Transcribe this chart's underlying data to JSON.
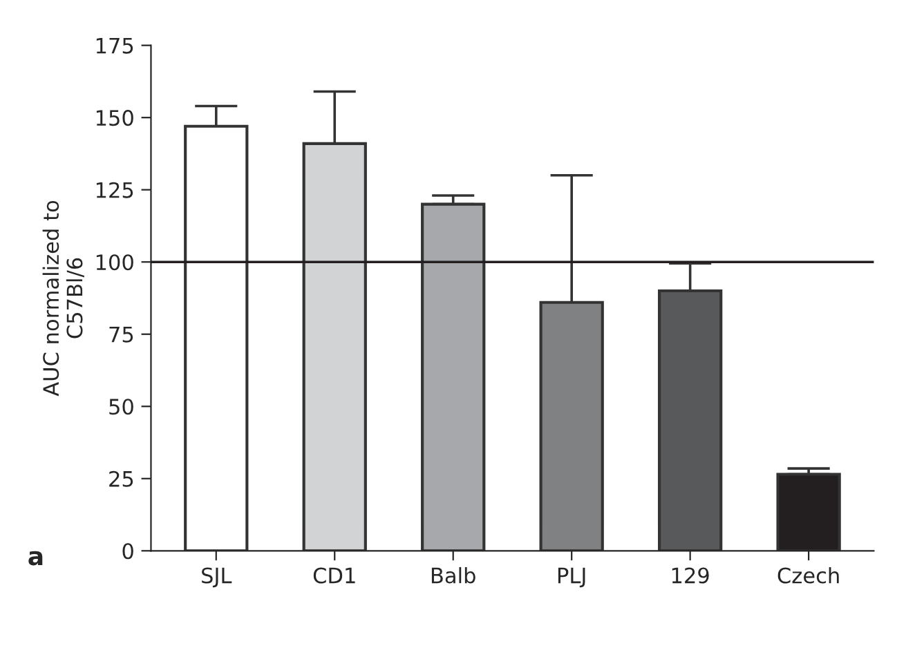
{
  "chart_data": {
    "type": "bar",
    "ylabel": "AUC normalized to\nC57Bl/6",
    "categories": [
      "SJL",
      "CD1",
      "Balb",
      "PLJ",
      "129",
      "Czech"
    ],
    "values": [
      147,
      141,
      120,
      86,
      90,
      26.5
    ],
    "errors": [
      [
        147,
        154
      ],
      [
        141,
        159
      ],
      [
        120,
        123
      ],
      [
        86,
        130
      ],
      [
        90,
        99.5
      ],
      [
        26.5,
        28.5
      ]
    ],
    "colors": [
      "#ffffff",
      "#d2d3d5",
      "#a7a8ab",
      "#808183",
      "#58595b",
      "#231f20"
    ],
    "ylim": [
      0,
      175
    ],
    "yticks": [
      0,
      25,
      50,
      75,
      100,
      125,
      150,
      175
    ],
    "ref_lines": [
      {
        "axis": "y",
        "value": 100,
        "color": "#231f20"
      }
    ],
    "annotations": [
      "a"
    ],
    "grid": false,
    "legend": false
  }
}
